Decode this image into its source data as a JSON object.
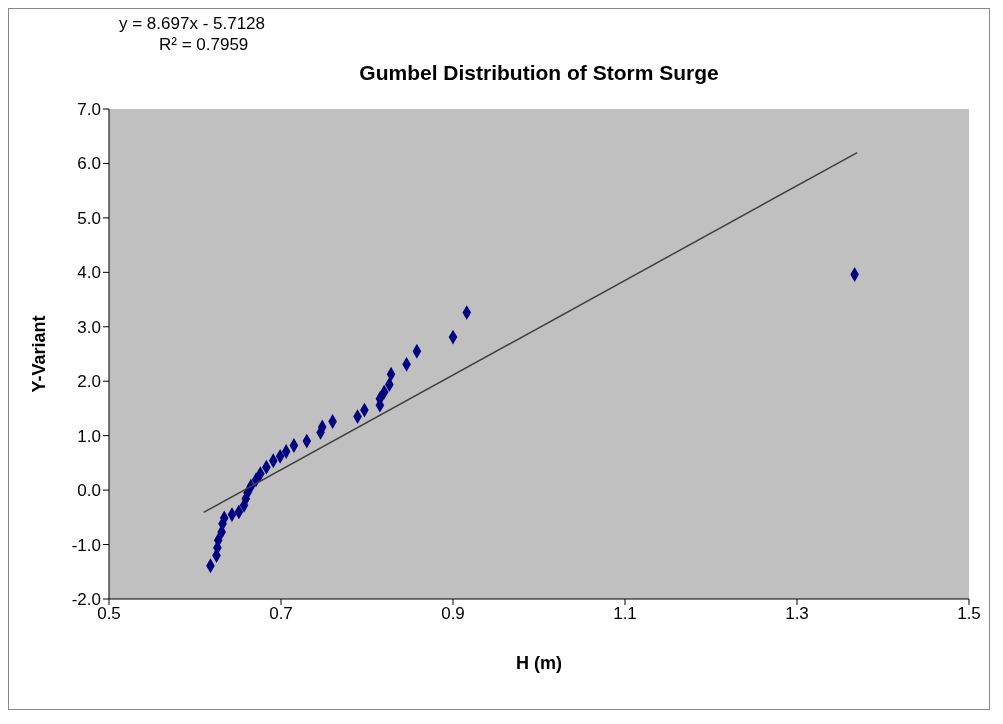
{
  "chart_data": {
    "type": "scatter",
    "title": "Gumbel Distribution  of Storm Surge",
    "xlabel": "H (m)",
    "ylabel": "Y-Variant",
    "annotations": [
      "y = 8.697x - 5.7128",
      "R² = 0.7959"
    ],
    "series": [
      {
        "color": "#000080",
        "marker": "diamond",
        "x": [
          0.618,
          0.625,
          0.626,
          0.627,
          0.631,
          0.632,
          0.634,
          0.643,
          0.651,
          0.657,
          0.659,
          0.661,
          0.665,
          0.671,
          0.676,
          0.683,
          0.691,
          0.699,
          0.706,
          0.715,
          0.73,
          0.746,
          0.748,
          0.76,
          0.789,
          0.797,
          0.815,
          0.815,
          0.82,
          0.826,
          0.828,
          0.846,
          0.858,
          0.9,
          0.916,
          1.367
        ],
        "values": [
          -1.39,
          -1.2,
          -1.06,
          -0.92,
          -0.77,
          -0.62,
          -0.51,
          -0.45,
          -0.4,
          -0.28,
          -0.16,
          -0.05,
          0.07,
          0.19,
          0.3,
          0.42,
          0.54,
          0.62,
          0.71,
          0.82,
          0.9,
          1.06,
          1.16,
          1.26,
          1.35,
          1.47,
          1.56,
          1.68,
          1.8,
          1.94,
          2.13,
          2.31,
          2.55,
          2.81,
          3.26,
          3.96
        ]
      },
      {
        "type": "line",
        "color": "#404040",
        "x": [
          0.61,
          1.37
        ],
        "values": [
          -0.41,
          6.2
        ]
      }
    ],
    "xlim": [
      0.5,
      1.5
    ],
    "xticks": [
      0.5,
      0.7,
      0.9,
      1.1,
      1.3,
      1.5
    ],
    "ylim": [
      -2,
      7
    ],
    "yticks": [
      {
        "value": -2,
        "label": "-2.0"
      },
      {
        "value": -1,
        "label": "-1.0"
      },
      {
        "value": 0,
        "label": "0.0"
      },
      {
        "value": 1,
        "label": "1.0"
      },
      {
        "value": 2,
        "label": "2.0"
      },
      {
        "value": 3,
        "label": "3.0"
      },
      {
        "value": 4,
        "label": "4.0"
      },
      {
        "value": 5,
        "label": "5.0"
      },
      {
        "value": 6,
        "label": "6.0"
      },
      {
        "value": 7,
        "label": "7.0"
      }
    ],
    "grid": false
  }
}
